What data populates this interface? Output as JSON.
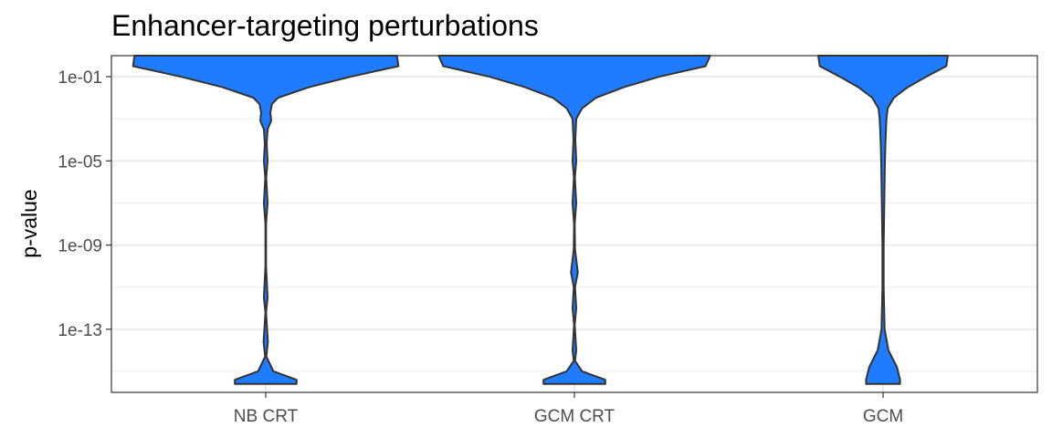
{
  "chart_data": {
    "type": "violin",
    "title": "Enhancer-targeting perturbations",
    "xlabel": "",
    "ylabel": "p-value",
    "y_scale": "log10",
    "ylim": [
      1e-16,
      1.0
    ],
    "y_ticks": [
      "1e-01",
      "1e-05",
      "1e-09",
      "1e-13"
    ],
    "y_tick_values": [
      0.1,
      1e-05,
      1e-09,
      1e-13
    ],
    "categories": [
      "NB CRT",
      "GCM CRT",
      "GCM"
    ],
    "grid": true,
    "legend": "none",
    "fill_color": "#1f7cff",
    "outline_color": "#333333",
    "violins": [
      {
        "category": "NB CRT",
        "profile": [
          {
            "log10p": 0.0,
            "width": 0.85
          },
          {
            "log10p": -0.5,
            "width": 0.86
          },
          {
            "log10p": -1.0,
            "width": 0.55
          },
          {
            "log10p": -1.5,
            "width": 0.28
          },
          {
            "log10p": -2.0,
            "width": 0.08
          },
          {
            "log10p": -2.3,
            "width": 0.04
          },
          {
            "log10p": -2.7,
            "width": 0.03
          },
          {
            "log10p": -3.1,
            "width": 0.035
          },
          {
            "log10p": -3.5,
            "width": 0.012
          },
          {
            "log10p": -4.2,
            "width": 0.006
          },
          {
            "log10p": -5.0,
            "width": 0.012
          },
          {
            "log10p": -5.8,
            "width": 0.003
          },
          {
            "log10p": -7.0,
            "width": 0.012
          },
          {
            "log10p": -8.0,
            "width": 0.002
          },
          {
            "log10p": -10.0,
            "width": 0.002
          },
          {
            "log10p": -11.5,
            "width": 0.012
          },
          {
            "log10p": -12.2,
            "width": 0.002
          },
          {
            "log10p": -13.6,
            "width": 0.014
          },
          {
            "log10p": -14.3,
            "width": 0.004
          },
          {
            "log10p": -15.0,
            "width": 0.05
          },
          {
            "log10p": -15.4,
            "width": 0.2
          },
          {
            "log10p": -15.6,
            "width": 0.2
          }
        ]
      },
      {
        "category": "GCM CRT",
        "profile": [
          {
            "log10p": 0.0,
            "width": 0.88
          },
          {
            "log10p": -0.5,
            "width": 0.85
          },
          {
            "log10p": -1.0,
            "width": 0.55
          },
          {
            "log10p": -1.5,
            "width": 0.32
          },
          {
            "log10p": -2.0,
            "width": 0.14
          },
          {
            "log10p": -2.5,
            "width": 0.05
          },
          {
            "log10p": -3.0,
            "width": 0.012
          },
          {
            "log10p": -4.0,
            "width": 0.006
          },
          {
            "log10p": -5.0,
            "width": 0.012
          },
          {
            "log10p": -5.8,
            "width": 0.003
          },
          {
            "log10p": -7.0,
            "width": 0.012
          },
          {
            "log10p": -8.0,
            "width": 0.002
          },
          {
            "log10p": -9.2,
            "width": 0.004
          },
          {
            "log10p": -10.3,
            "width": 0.022
          },
          {
            "log10p": -11.0,
            "width": 0.004
          },
          {
            "log10p": -12.0,
            "width": 0.012
          },
          {
            "log10p": -12.8,
            "width": 0.002
          },
          {
            "log10p": -14.0,
            "width": 0.012
          },
          {
            "log10p": -14.5,
            "width": 0.004
          },
          {
            "log10p": -15.0,
            "width": 0.05
          },
          {
            "log10p": -15.4,
            "width": 0.2
          },
          {
            "log10p": -15.6,
            "width": 0.2
          }
        ]
      },
      {
        "category": "GCM",
        "profile": [
          {
            "log10p": 0.0,
            "width": 0.42
          },
          {
            "log10p": -0.5,
            "width": 0.41
          },
          {
            "log10p": -1.0,
            "width": 0.28
          },
          {
            "log10p": -1.5,
            "width": 0.16
          },
          {
            "log10p": -2.0,
            "width": 0.07
          },
          {
            "log10p": -2.5,
            "width": 0.03
          },
          {
            "log10p": -3.0,
            "width": 0.022
          },
          {
            "log10p": -4.0,
            "width": 0.016
          },
          {
            "log10p": -5.0,
            "width": 0.012
          },
          {
            "log10p": -7.0,
            "width": 0.008
          },
          {
            "log10p": -9.0,
            "width": 0.004
          },
          {
            "log10p": -11.0,
            "width": 0.004
          },
          {
            "log10p": -13.0,
            "width": 0.01
          },
          {
            "log10p": -14.0,
            "width": 0.035
          },
          {
            "log10p": -14.8,
            "width": 0.09
          },
          {
            "log10p": -15.4,
            "width": 0.11
          },
          {
            "log10p": -15.6,
            "width": 0.11
          }
        ]
      }
    ]
  }
}
